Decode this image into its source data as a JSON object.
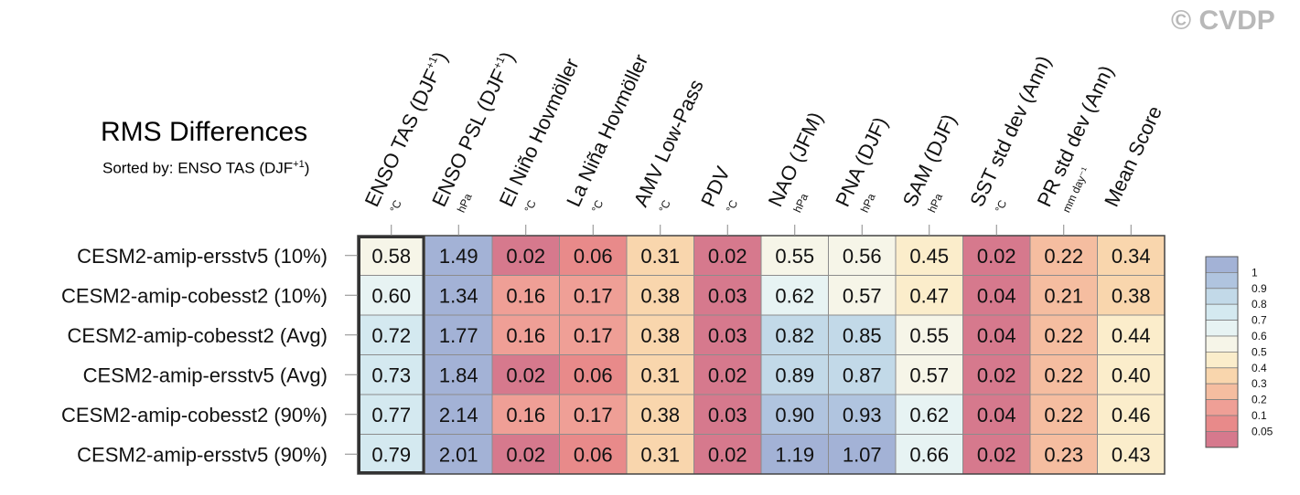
{
  "watermark": "© CVDP",
  "header": {
    "title": "RMS Differences",
    "subtitle_prefix": "Sorted by: ENSO TAS (DJF",
    "subtitle_sup": "+1",
    "subtitle_suffix": ")"
  },
  "chart_data": {
    "type": "heatmap",
    "title": "RMS Differences",
    "columns": [
      {
        "label": "ENSO TAS (DJF",
        "sup": "+1",
        "suffix": ")",
        "unit": "°C"
      },
      {
        "label": "ENSO PSL (DJF",
        "sup": "+1",
        "suffix": ")",
        "unit": "hPa"
      },
      {
        "label": "El Niño Hovmöller",
        "sup": "",
        "suffix": "",
        "unit": "°C"
      },
      {
        "label": "La Niña Hovmöller",
        "sup": "",
        "suffix": "",
        "unit": "°C"
      },
      {
        "label": "AMV Low-Pass",
        "sup": "",
        "suffix": "",
        "unit": "°C"
      },
      {
        "label": "PDV",
        "sup": "",
        "suffix": "",
        "unit": "°C"
      },
      {
        "label": "NAO (JFM)",
        "sup": "",
        "suffix": "",
        "unit": "hPa"
      },
      {
        "label": "PNA (DJF)",
        "sup": "",
        "suffix": "",
        "unit": "hPa"
      },
      {
        "label": "SAM (DJF)",
        "sup": "",
        "suffix": "",
        "unit": "hPa"
      },
      {
        "label": "SST std dev (Ann)",
        "sup": "",
        "suffix": "",
        "unit": "°C"
      },
      {
        "label": "PR std dev (Ann)",
        "sup": "",
        "suffix": "",
        "unit": "mm day⁻¹"
      },
      {
        "label": "Mean Score",
        "sup": "",
        "suffix": "",
        "unit": ""
      }
    ],
    "rows": [
      "CESM2-amip-ersstv5 (10%)",
      "CESM2-amip-cobesst2 (10%)",
      "CESM2-amip-cobesst2 (Avg)",
      "CESM2-amip-ersstv5 (Avg)",
      "CESM2-amip-cobesst2 (90%)",
      "CESM2-amip-ersstv5 (90%)"
    ],
    "values": [
      [
        "0.58",
        "1.49",
        "0.02",
        "0.06",
        "0.31",
        "0.02",
        "0.55",
        "0.56",
        "0.45",
        "0.02",
        "0.22",
        "0.34"
      ],
      [
        "0.60",
        "1.34",
        "0.16",
        "0.17",
        "0.38",
        "0.03",
        "0.62",
        "0.57",
        "0.47",
        "0.04",
        "0.21",
        "0.38"
      ],
      [
        "0.72",
        "1.77",
        "0.16",
        "0.17",
        "0.38",
        "0.03",
        "0.82",
        "0.85",
        "0.55",
        "0.04",
        "0.22",
        "0.44"
      ],
      [
        "0.73",
        "1.84",
        "0.02",
        "0.06",
        "0.31",
        "0.02",
        "0.89",
        "0.87",
        "0.57",
        "0.02",
        "0.22",
        "0.40"
      ],
      [
        "0.77",
        "2.14",
        "0.16",
        "0.17",
        "0.38",
        "0.03",
        "0.90",
        "0.93",
        "0.62",
        "0.04",
        "0.22",
        "0.46"
      ],
      [
        "0.79",
        "2.01",
        "0.02",
        "0.06",
        "0.31",
        "0.02",
        "1.19",
        "1.07",
        "0.66",
        "0.02",
        "0.23",
        "0.43"
      ]
    ],
    "highlighted_column": 0,
    "legend": {
      "placement": "right",
      "labels": [
        "1",
        "0.9",
        "0.8",
        "0.7",
        "0.6",
        "0.5",
        "0.4",
        "0.3",
        "0.2",
        "0.1",
        "0.05"
      ],
      "colors": [
        "#a3b2d6",
        "#b0c4df",
        "#c2d9e8",
        "#d4e9f0",
        "#e7f3f3",
        "#f6f5e8",
        "#fbedcb",
        "#f9d6ad",
        "#f5bda0",
        "#ef9f96",
        "#e88a8a",
        "#d6798d"
      ]
    }
  }
}
